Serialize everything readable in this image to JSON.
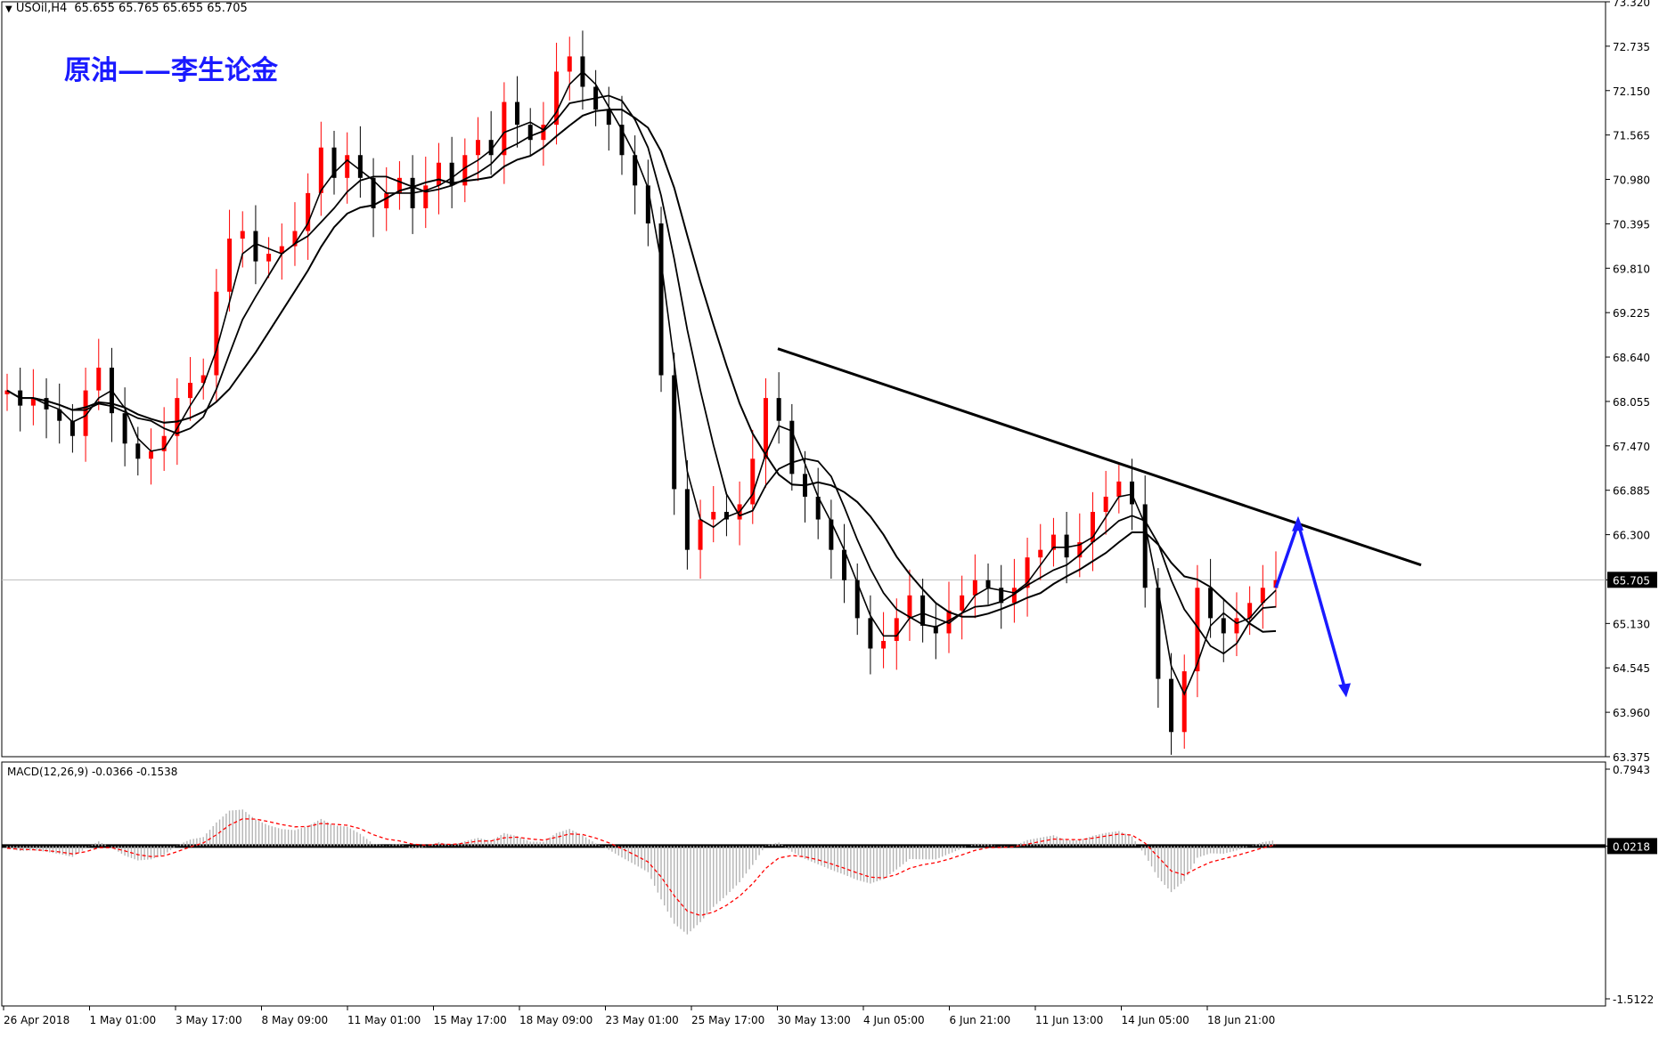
{
  "header": {
    "symbol": "USOil,H4",
    "ohlc": "65.655 65.765 65.655 65.705",
    "menu_glyph": "▼"
  },
  "annotation": "原油——李生论金",
  "colors": {
    "bull": "#ff0000",
    "bear": "#000000",
    "trendline": "#000000",
    "forecast": "#1a1aff",
    "macd_hist": "#b4b4b4",
    "macd_signal": "#ff0000"
  },
  "chart_data": [
    {
      "type": "candlestick",
      "symbol": "USOil",
      "timeframe": "H4",
      "last_price": "65.705",
      "ylim": [
        63.375,
        73.32
      ],
      "y_ticks": [
        "73.320",
        "72.735",
        "72.150",
        "71.565",
        "70.980",
        "70.395",
        "69.810",
        "69.225",
        "68.640",
        "68.055",
        "67.470",
        "66.885",
        "66.300",
        "65.705",
        "65.130",
        "64.545",
        "63.960",
        "63.375"
      ],
      "x_ticks": [
        "26 Apr 2018",
        "1 May 01:00",
        "3 May 17:00",
        "8 May 09:00",
        "11 May 01:00",
        "15 May 17:00",
        "18 May 09:00",
        "23 May 01:00",
        "25 May 17:00",
        "30 May 13:00",
        "4 Jun 05:00",
        "6 Jun 21:00",
        "11 Jun 13:00",
        "14 Jun 05:00",
        "18 Jun 21:00"
      ],
      "close_path": [
        68.2,
        68.0,
        68.1,
        67.95,
        67.8,
        67.6,
        68.2,
        68.5,
        67.9,
        67.5,
        67.3,
        67.4,
        67.6,
        68.1,
        68.3,
        68.4,
        69.5,
        70.2,
        70.3,
        69.9,
        70.0,
        70.1,
        70.3,
        70.8,
        71.4,
        71.0,
        71.3,
        71.0,
        70.6,
        70.8,
        71.0,
        70.6,
        70.9,
        71.2,
        70.9,
        71.3,
        71.5,
        71.3,
        72.0,
        71.7,
        71.5,
        71.7,
        72.4,
        72.6,
        72.2,
        71.9,
        71.7,
        71.3,
        70.9,
        70.4,
        68.4,
        66.9,
        66.1,
        66.5,
        66.6,
        66.5,
        66.7,
        67.3,
        68.1,
        67.8,
        67.1,
        66.8,
        66.5,
        66.1,
        65.7,
        65.2,
        64.8,
        64.9,
        65.2,
        65.5,
        65.1,
        65.0,
        65.3,
        65.5,
        65.7,
        65.6,
        65.4,
        65.6,
        66.0,
        66.1,
        66.3,
        66.0,
        66.2,
        66.6,
        66.8,
        67.0,
        66.7,
        65.6,
        64.4,
        63.7,
        64.5,
        65.6,
        65.2,
        65.0,
        65.2,
        65.4,
        65.6,
        65.7
      ],
      "moving_averages": [
        "MA fast",
        "MA mid",
        "MA slow"
      ],
      "trendline": {
        "from": [
          "30 May 13:00",
          68.75
        ],
        "to": [
          "20 Jun",
          65.9
        ]
      },
      "forecast_arrow": {
        "points": [
          65.6,
          66.45,
          64.25
        ],
        "meaning": "rise to trendline then decline"
      }
    },
    {
      "type": "macd",
      "label": "MACD(12,26,9) -0.0366 -0.1538",
      "params": [
        12,
        26,
        9
      ],
      "ylim": [
        -1.5122,
        0.7943
      ],
      "y_ticks": [
        "0.7943",
        "0.0218",
        "-1.5122"
      ]
    }
  ]
}
